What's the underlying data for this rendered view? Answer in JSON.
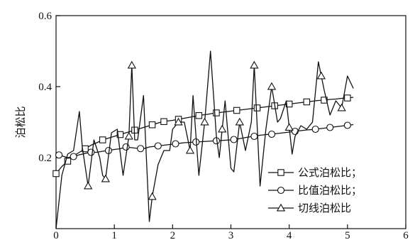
{
  "chart_data": {
    "type": "line",
    "title": "",
    "xlabel": "",
    "ylabel": "泊松比",
    "xlim": [
      0,
      6
    ],
    "ylim": [
      0,
      0.6
    ],
    "x_ticks": [
      "0",
      "1",
      "2",
      "3",
      "4",
      "5",
      "6"
    ],
    "y_ticks": [
      "0.2",
      "0.4",
      "0.6"
    ],
    "y_tick_values": [
      0.2,
      0.4,
      0.6
    ],
    "grid": false,
    "legend_position": "bottom-right",
    "series": [
      {
        "name": "公式泊松比；",
        "marker": "square",
        "x": [
          0.0,
          0.1,
          0.2,
          0.3,
          0.4,
          0.5,
          0.6,
          0.7,
          0.8,
          0.9,
          1.0,
          1.1,
          1.2,
          1.3,
          1.4,
          1.5,
          1.6,
          1.7,
          1.8,
          1.9,
          2.0,
          2.1,
          2.2,
          2.3,
          2.4,
          2.5,
          2.6,
          2.7,
          2.8,
          2.9,
          3.0,
          3.1,
          3.2,
          3.3,
          3.4,
          3.5,
          3.6,
          3.7,
          3.8,
          3.9,
          4.0,
          4.1,
          4.2,
          4.3,
          4.4,
          4.5,
          4.6,
          4.7,
          4.8,
          4.9,
          5.0,
          5.1
        ],
        "values": [
          0.155,
          0.175,
          0.19,
          0.205,
          0.215,
          0.225,
          0.235,
          0.242,
          0.25,
          0.255,
          0.26,
          0.265,
          0.27,
          0.275,
          0.28,
          0.285,
          0.29,
          0.295,
          0.3,
          0.303,
          0.305,
          0.308,
          0.311,
          0.314,
          0.317,
          0.32,
          0.322,
          0.325,
          0.327,
          0.329,
          0.331,
          0.333,
          0.335,
          0.337,
          0.339,
          0.341,
          0.343,
          0.345,
          0.347,
          0.349,
          0.351,
          0.353,
          0.355,
          0.357,
          0.359,
          0.361,
          0.362,
          0.364,
          0.365,
          0.367,
          0.368,
          0.37
        ],
        "marker_x": [
          0.0,
          0.2,
          0.5,
          0.8,
          1.1,
          1.35,
          1.65,
          1.85,
          2.1,
          2.45,
          2.75,
          3.1,
          3.45,
          3.75,
          4.0,
          4.3,
          4.6,
          5.0
        ]
      },
      {
        "name": "比值泊松比；",
        "marker": "circle",
        "x": [
          0.0,
          0.1,
          0.2,
          0.3,
          0.4,
          0.5,
          0.6,
          0.7,
          0.8,
          0.9,
          1.0,
          1.1,
          1.2,
          1.3,
          1.4,
          1.5,
          1.6,
          1.7,
          1.8,
          1.9,
          2.0,
          2.1,
          2.2,
          2.3,
          2.4,
          2.5,
          2.6,
          2.7,
          2.8,
          2.9,
          3.0,
          3.1,
          3.2,
          3.3,
          3.4,
          3.5,
          3.6,
          3.7,
          3.8,
          3.9,
          4.0,
          4.1,
          4.2,
          4.3,
          4.4,
          4.5,
          4.6,
          4.7,
          4.8,
          4.9,
          5.0,
          5.1
        ],
        "values": [
          0.21,
          0.205,
          0.2,
          0.203,
          0.208,
          0.212,
          0.215,
          0.215,
          0.218,
          0.22,
          0.223,
          0.225,
          0.23,
          0.228,
          0.226,
          0.225,
          0.23,
          0.232,
          0.234,
          0.236,
          0.238,
          0.24,
          0.242,
          0.243,
          0.244,
          0.245,
          0.246,
          0.247,
          0.248,
          0.249,
          0.25,
          0.252,
          0.255,
          0.258,
          0.26,
          0.263,
          0.265,
          0.266,
          0.268,
          0.27,
          0.272,
          0.274,
          0.276,
          0.278,
          0.279,
          0.281,
          0.283,
          0.285,
          0.287,
          0.289,
          0.291,
          0.293
        ],
        "marker_x": [
          0.05,
          0.3,
          0.6,
          0.9,
          1.2,
          1.45,
          1.75,
          2.05,
          2.4,
          2.75,
          3.05,
          3.4,
          3.7,
          4.1,
          4.45,
          4.7,
          5.0
        ]
      },
      {
        "name": "切线泊松比",
        "marker": "triangle",
        "x": [
          0.0,
          0.1,
          0.2,
          0.3,
          0.4,
          0.45,
          0.55,
          0.65,
          0.75,
          0.8,
          0.85,
          0.95,
          1.05,
          1.15,
          1.25,
          1.3,
          1.35,
          1.4,
          1.5,
          1.6,
          1.65,
          1.75,
          1.85,
          1.95,
          2.0,
          2.1,
          2.2,
          2.3,
          2.35,
          2.45,
          2.55,
          2.65,
          2.75,
          2.8,
          2.9,
          3.0,
          3.05,
          3.15,
          3.25,
          3.35,
          3.4,
          3.5,
          3.6,
          3.7,
          3.8,
          3.85,
          3.95,
          4.05,
          4.1,
          4.2,
          4.3,
          4.4,
          4.5,
          4.6,
          4.7,
          4.8,
          4.9,
          5.0,
          5.1
        ],
        "values": [
          0.0,
          0.15,
          0.21,
          0.22,
          0.33,
          0.23,
          0.12,
          0.25,
          0.2,
          0.15,
          0.14,
          0.27,
          0.28,
          0.15,
          0.26,
          0.46,
          0.25,
          0.25,
          0.375,
          0.02,
          0.09,
          0.18,
          0.22,
          0.22,
          0.28,
          0.3,
          0.3,
          0.22,
          0.375,
          0.15,
          0.3,
          0.5,
          0.26,
          0.2,
          0.36,
          0.17,
          0.16,
          0.3,
          0.22,
          0.3,
          0.46,
          0.12,
          0.28,
          0.4,
          0.3,
          0.31,
          0.36,
          0.21,
          0.26,
          0.29,
          0.28,
          0.3,
          0.47,
          0.39,
          0.32,
          0.36,
          0.34,
          0.43,
          0.395
        ],
        "marker_x": [
          0.55,
          0.85,
          1.25,
          1.3,
          1.65,
          2.1,
          2.3,
          2.55,
          2.85,
          3.15,
          3.4,
          3.7,
          4.0,
          4.55,
          4.9
        ]
      }
    ]
  }
}
